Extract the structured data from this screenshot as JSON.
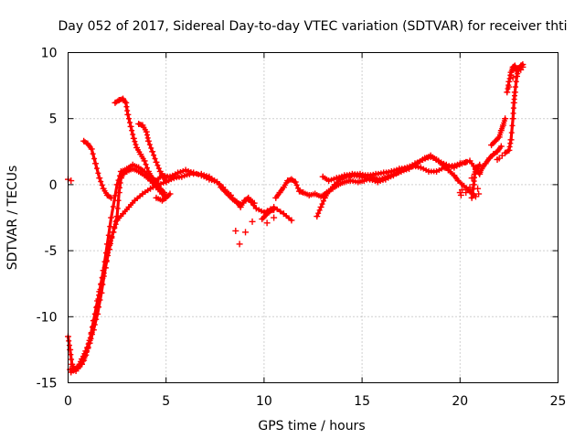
{
  "chart_data": {
    "type": "scatter",
    "title": "Day 052 of 2017, Sidereal Day-to-day VTEC variation (SDTVAR) for receiver thti",
    "xlabel": "GPS time / hours",
    "ylabel": "SDTVAR / TECUs",
    "xlim": [
      0,
      25
    ],
    "ylim": [
      -15,
      10
    ],
    "xticks": [
      "0",
      "5",
      "10",
      "15",
      "20",
      "25"
    ],
    "yticks": [
      "10",
      "5",
      "0",
      "-5",
      "-10",
      "-15"
    ],
    "grid": true,
    "marker": "+",
    "color": "#ff0000",
    "series": [
      {
        "points": [
          [
            0.0,
            -11.5
          ],
          [
            0.1,
            -12.5
          ],
          [
            0.2,
            -13.6
          ],
          [
            0.3,
            -14.0
          ],
          [
            0.5,
            -13.8
          ],
          [
            0.7,
            -13.2
          ],
          [
            0.9,
            -12.6
          ],
          [
            1.1,
            -11.8
          ],
          [
            1.3,
            -10.3
          ],
          [
            1.5,
            -8.8
          ],
          [
            1.7,
            -7.5
          ],
          [
            1.9,
            -6.3
          ],
          [
            2.1,
            -4.6
          ],
          [
            2.3,
            -3.6
          ],
          [
            2.5,
            -2.7
          ],
          [
            2.8,
            -2.2
          ],
          [
            3.1,
            -1.7
          ],
          [
            3.4,
            -1.2
          ],
          [
            3.8,
            -0.7
          ],
          [
            4.2,
            -0.3
          ],
          [
            4.6,
            0.0
          ],
          [
            5.0,
            0.2
          ],
          [
            5.4,
            0.5
          ],
          [
            5.8,
            0.6
          ],
          [
            6.2,
            0.8
          ],
          [
            6.8,
            0.8
          ],
          [
            7.2,
            0.6
          ],
          [
            7.6,
            0.2
          ],
          [
            7.9,
            -0.2
          ],
          [
            8.2,
            -0.8
          ],
          [
            8.5,
            -1.2
          ],
          [
            8.8,
            -1.5
          ],
          [
            9.2,
            -1.1
          ],
          [
            9.6,
            -1.8
          ],
          [
            10.0,
            -2.1
          ],
          [
            10.5,
            -1.7
          ],
          [
            11.0,
            -2.2
          ],
          [
            11.4,
            -2.7
          ]
        ]
      },
      {
        "points": [
          [
            0.1,
            -14.0
          ],
          [
            0.4,
            -14.1
          ],
          [
            0.7,
            -13.6
          ],
          [
            0.9,
            -12.9
          ],
          [
            1.1,
            -12.0
          ],
          [
            1.3,
            -11.0
          ],
          [
            1.5,
            -9.8
          ],
          [
            1.7,
            -8.2
          ],
          [
            1.9,
            -6.3
          ],
          [
            2.1,
            -4.9
          ],
          [
            2.3,
            -3.6
          ],
          [
            2.5,
            -2.4
          ],
          [
            2.6,
            -0.6
          ],
          [
            2.7,
            0.5
          ],
          [
            2.85,
            0.9
          ],
          [
            3.0,
            1.0
          ],
          [
            3.3,
            1.2
          ],
          [
            3.6,
            1.0
          ],
          [
            3.9,
            0.7
          ],
          [
            4.2,
            0.3
          ],
          [
            4.5,
            -0.2
          ],
          [
            4.8,
            -0.7
          ],
          [
            5.0,
            -0.9
          ]
        ]
      },
      {
        "points": [
          [
            0.15,
            -14.2
          ],
          [
            0.5,
            -13.9
          ],
          [
            0.8,
            -13.3
          ],
          [
            1.0,
            -12.4
          ],
          [
            1.2,
            -11.2
          ],
          [
            1.4,
            -9.8
          ],
          [
            1.6,
            -8.1
          ],
          [
            1.8,
            -6.5
          ],
          [
            2.0,
            -4.5
          ],
          [
            2.2,
            -2.5
          ],
          [
            2.5,
            0.0
          ],
          [
            2.7,
            1.0
          ],
          [
            3.0,
            1.2
          ],
          [
            3.3,
            1.5
          ],
          [
            3.6,
            1.3
          ],
          [
            3.9,
            1.0
          ],
          [
            4.2,
            0.5
          ],
          [
            4.5,
            0.3
          ],
          [
            4.8,
            0.7
          ],
          [
            5.2,
            0.6
          ],
          [
            5.6,
            0.9
          ],
          [
            6.0,
            1.1
          ],
          [
            6.4,
            0.9
          ],
          [
            6.8,
            0.7
          ],
          [
            7.2,
            0.4
          ],
          [
            7.6,
            0.2
          ],
          [
            8.0,
            -0.4
          ],
          [
            8.3,
            -0.8
          ]
        ]
      },
      {
        "points": [
          [
            0.8,
            3.3
          ],
          [
            1.0,
            3.1
          ],
          [
            1.2,
            2.7
          ],
          [
            1.4,
            1.6
          ],
          [
            1.6,
            0.5
          ],
          [
            1.8,
            -0.3
          ],
          [
            2.0,
            -0.8
          ],
          [
            2.2,
            -1.0
          ]
        ]
      },
      {
        "points": [
          [
            2.4,
            6.2
          ],
          [
            2.6,
            6.4
          ],
          [
            2.8,
            6.5
          ],
          [
            2.95,
            6.2
          ],
          [
            3.05,
            5.3
          ],
          [
            3.2,
            4.4
          ],
          [
            3.35,
            3.5
          ],
          [
            3.5,
            2.8
          ],
          [
            3.7,
            2.3
          ],
          [
            3.9,
            1.8
          ],
          [
            4.1,
            1.0
          ],
          [
            4.3,
            0.5
          ],
          [
            4.5,
            0.2
          ],
          [
            4.7,
            -0.3
          ],
          [
            4.9,
            -0.6
          ]
        ]
      },
      {
        "points": [
          [
            3.6,
            4.6
          ],
          [
            3.8,
            4.5
          ],
          [
            4.0,
            4.0
          ],
          [
            4.1,
            3.3
          ],
          [
            4.3,
            2.5
          ],
          [
            4.5,
            1.7
          ],
          [
            4.7,
            1.0
          ],
          [
            4.9,
            0.5
          ],
          [
            5.0,
            0.2
          ]
        ]
      },
      {
        "points": [
          [
            4.5,
            -1.0
          ],
          [
            4.8,
            -1.2
          ],
          [
            5.0,
            -1.0
          ],
          [
            5.2,
            -0.7
          ]
        ]
      },
      {
        "points": [
          [
            7.8,
            -0.2
          ],
          [
            8.0,
            -0.5
          ],
          [
            8.2,
            -0.8
          ],
          [
            8.4,
            -1.1
          ],
          [
            8.6,
            -1.3
          ],
          [
            8.8,
            -1.7
          ],
          [
            9.0,
            -1.2
          ],
          [
            9.2,
            -1.0
          ],
          [
            9.5,
            -1.4
          ]
        ]
      },
      {
        "points": [
          [
            9.9,
            -2.6
          ],
          [
            10.1,
            -2.3
          ],
          [
            10.3,
            -2.0
          ],
          [
            10.5,
            -1.9
          ]
        ]
      },
      {
        "points": [
          [
            10.6,
            -1.0
          ],
          [
            10.8,
            -0.6
          ],
          [
            11.0,
            -0.2
          ],
          [
            11.2,
            0.3
          ],
          [
            11.4,
            0.4
          ],
          [
            11.6,
            0.2
          ],
          [
            11.8,
            -0.5
          ],
          [
            12.0,
            -0.6
          ],
          [
            12.3,
            -0.8
          ],
          [
            12.6,
            -0.7
          ],
          [
            12.9,
            -0.9
          ],
          [
            13.2,
            -0.6
          ],
          [
            13.5,
            -0.3
          ],
          [
            13.8,
            0.0
          ],
          [
            14.1,
            0.2
          ],
          [
            14.4,
            0.3
          ],
          [
            14.8,
            0.2
          ],
          [
            15.1,
            0.3
          ],
          [
            15.5,
            0.5
          ],
          [
            15.9,
            0.4
          ],
          [
            16.3,
            0.6
          ],
          [
            16.8,
            0.9
          ],
          [
            17.2,
            1.2
          ],
          [
            17.6,
            1.4
          ],
          [
            18.0,
            1.3
          ],
          [
            18.4,
            1.0
          ],
          [
            18.8,
            1.0
          ],
          [
            19.2,
            1.3
          ],
          [
            19.6,
            1.4
          ],
          [
            20.0,
            1.6
          ],
          [
            20.3,
            1.7
          ]
        ]
      },
      {
        "points": [
          [
            12.7,
            -2.4
          ],
          [
            12.9,
            -1.7
          ],
          [
            13.1,
            -1.0
          ],
          [
            13.3,
            -0.5
          ],
          [
            13.6,
            0.0
          ],
          [
            13.9,
            0.4
          ],
          [
            14.2,
            0.6
          ],
          [
            14.6,
            0.7
          ],
          [
            15.0,
            0.6
          ],
          [
            15.4,
            0.4
          ],
          [
            15.8,
            0.2
          ],
          [
            16.2,
            0.4
          ],
          [
            16.6,
            0.7
          ],
          [
            17.0,
            1.0
          ],
          [
            17.4,
            1.2
          ],
          [
            17.8,
            1.6
          ],
          [
            18.2,
            2.0
          ],
          [
            18.5,
            2.2
          ],
          [
            18.8,
            1.9
          ],
          [
            19.1,
            1.5
          ],
          [
            19.4,
            1.1
          ],
          [
            19.7,
            0.7
          ],
          [
            19.9,
            0.3
          ],
          [
            20.2,
            -0.1
          ],
          [
            20.5,
            -0.5
          ],
          [
            20.7,
            -0.8
          ]
        ]
      },
      {
        "points": [
          [
            13.0,
            0.6
          ],
          [
            13.3,
            0.3
          ],
          [
            13.7,
            0.5
          ],
          [
            14.1,
            0.7
          ],
          [
            14.5,
            0.8
          ],
          [
            14.9,
            0.8
          ],
          [
            15.3,
            0.7
          ],
          [
            15.7,
            0.8
          ],
          [
            16.1,
            0.9
          ],
          [
            16.5,
            1.0
          ],
          [
            16.9,
            1.2
          ],
          [
            17.3,
            1.3
          ],
          [
            17.7,
            1.6
          ],
          [
            18.1,
            1.9
          ],
          [
            18.5,
            2.1
          ],
          [
            18.9,
            1.8
          ],
          [
            19.3,
            1.5
          ],
          [
            19.7,
            1.3
          ],
          [
            20.1,
            1.6
          ],
          [
            20.5,
            1.8
          ],
          [
            20.8,
            1.2
          ],
          [
            21.0,
            1.5
          ]
        ]
      },
      {
        "points": [
          [
            20.6,
            -1.0
          ],
          [
            20.7,
            0.0
          ],
          [
            20.75,
            0.8
          ],
          [
            20.8,
            1.3
          ],
          [
            20.9,
            1.0
          ],
          [
            21.0,
            0.8
          ],
          [
            21.1,
            1.2
          ],
          [
            21.3,
            1.6
          ],
          [
            21.5,
            2.0
          ],
          [
            21.7,
            2.3
          ],
          [
            21.9,
            2.5
          ],
          [
            22.1,
            2.9
          ]
        ]
      },
      {
        "points": [
          [
            21.6,
            3.0
          ],
          [
            21.8,
            3.3
          ],
          [
            22.0,
            3.6
          ],
          [
            22.1,
            4.1
          ],
          [
            22.2,
            4.5
          ],
          [
            22.3,
            5.0
          ]
        ]
      },
      {
        "points": [
          [
            22.3,
            2.4
          ],
          [
            22.5,
            2.6
          ],
          [
            22.6,
            3.4
          ],
          [
            22.7,
            5.0
          ],
          [
            22.75,
            6.2
          ],
          [
            22.8,
            7.0
          ],
          [
            22.9,
            8.2
          ],
          [
            23.0,
            8.8
          ],
          [
            23.1,
            9.0
          ],
          [
            23.2,
            9.1
          ]
        ]
      },
      {
        "points": [
          [
            22.4,
            7.0
          ],
          [
            22.5,
            7.8
          ],
          [
            22.6,
            8.5
          ],
          [
            22.7,
            8.9
          ],
          [
            22.8,
            9.0
          ],
          [
            22.9,
            8.7
          ]
        ]
      }
    ],
    "scatter_points": [
      [
        0.0,
        0.4
      ],
      [
        0.15,
        0.3
      ],
      [
        9.05,
        -3.6
      ],
      [
        8.75,
        -4.5
      ],
      [
        8.55,
        -3.5
      ],
      [
        9.4,
        -2.8
      ],
      [
        10.15,
        -2.9
      ],
      [
        10.5,
        -2.5
      ],
      [
        20.0,
        -0.6
      ],
      [
        20.05,
        -0.8
      ],
      [
        20.1,
        -0.4
      ],
      [
        20.3,
        -0.6
      ],
      [
        20.5,
        -0.2
      ],
      [
        20.9,
        -0.3
      ],
      [
        20.95,
        -0.7
      ],
      [
        20.6,
        0.5
      ],
      [
        20.8,
        -0.9
      ],
      [
        22.6,
        8.3
      ],
      [
        22.7,
        8.1
      ],
      [
        22.85,
        8.6
      ],
      [
        23.1,
        8.7
      ],
      [
        23.2,
        8.9
      ],
      [
        22.5,
        7.4
      ],
      [
        22.0,
        2.0
      ],
      [
        21.9,
        1.9
      ],
      [
        22.15,
        2.2
      ]
    ]
  }
}
